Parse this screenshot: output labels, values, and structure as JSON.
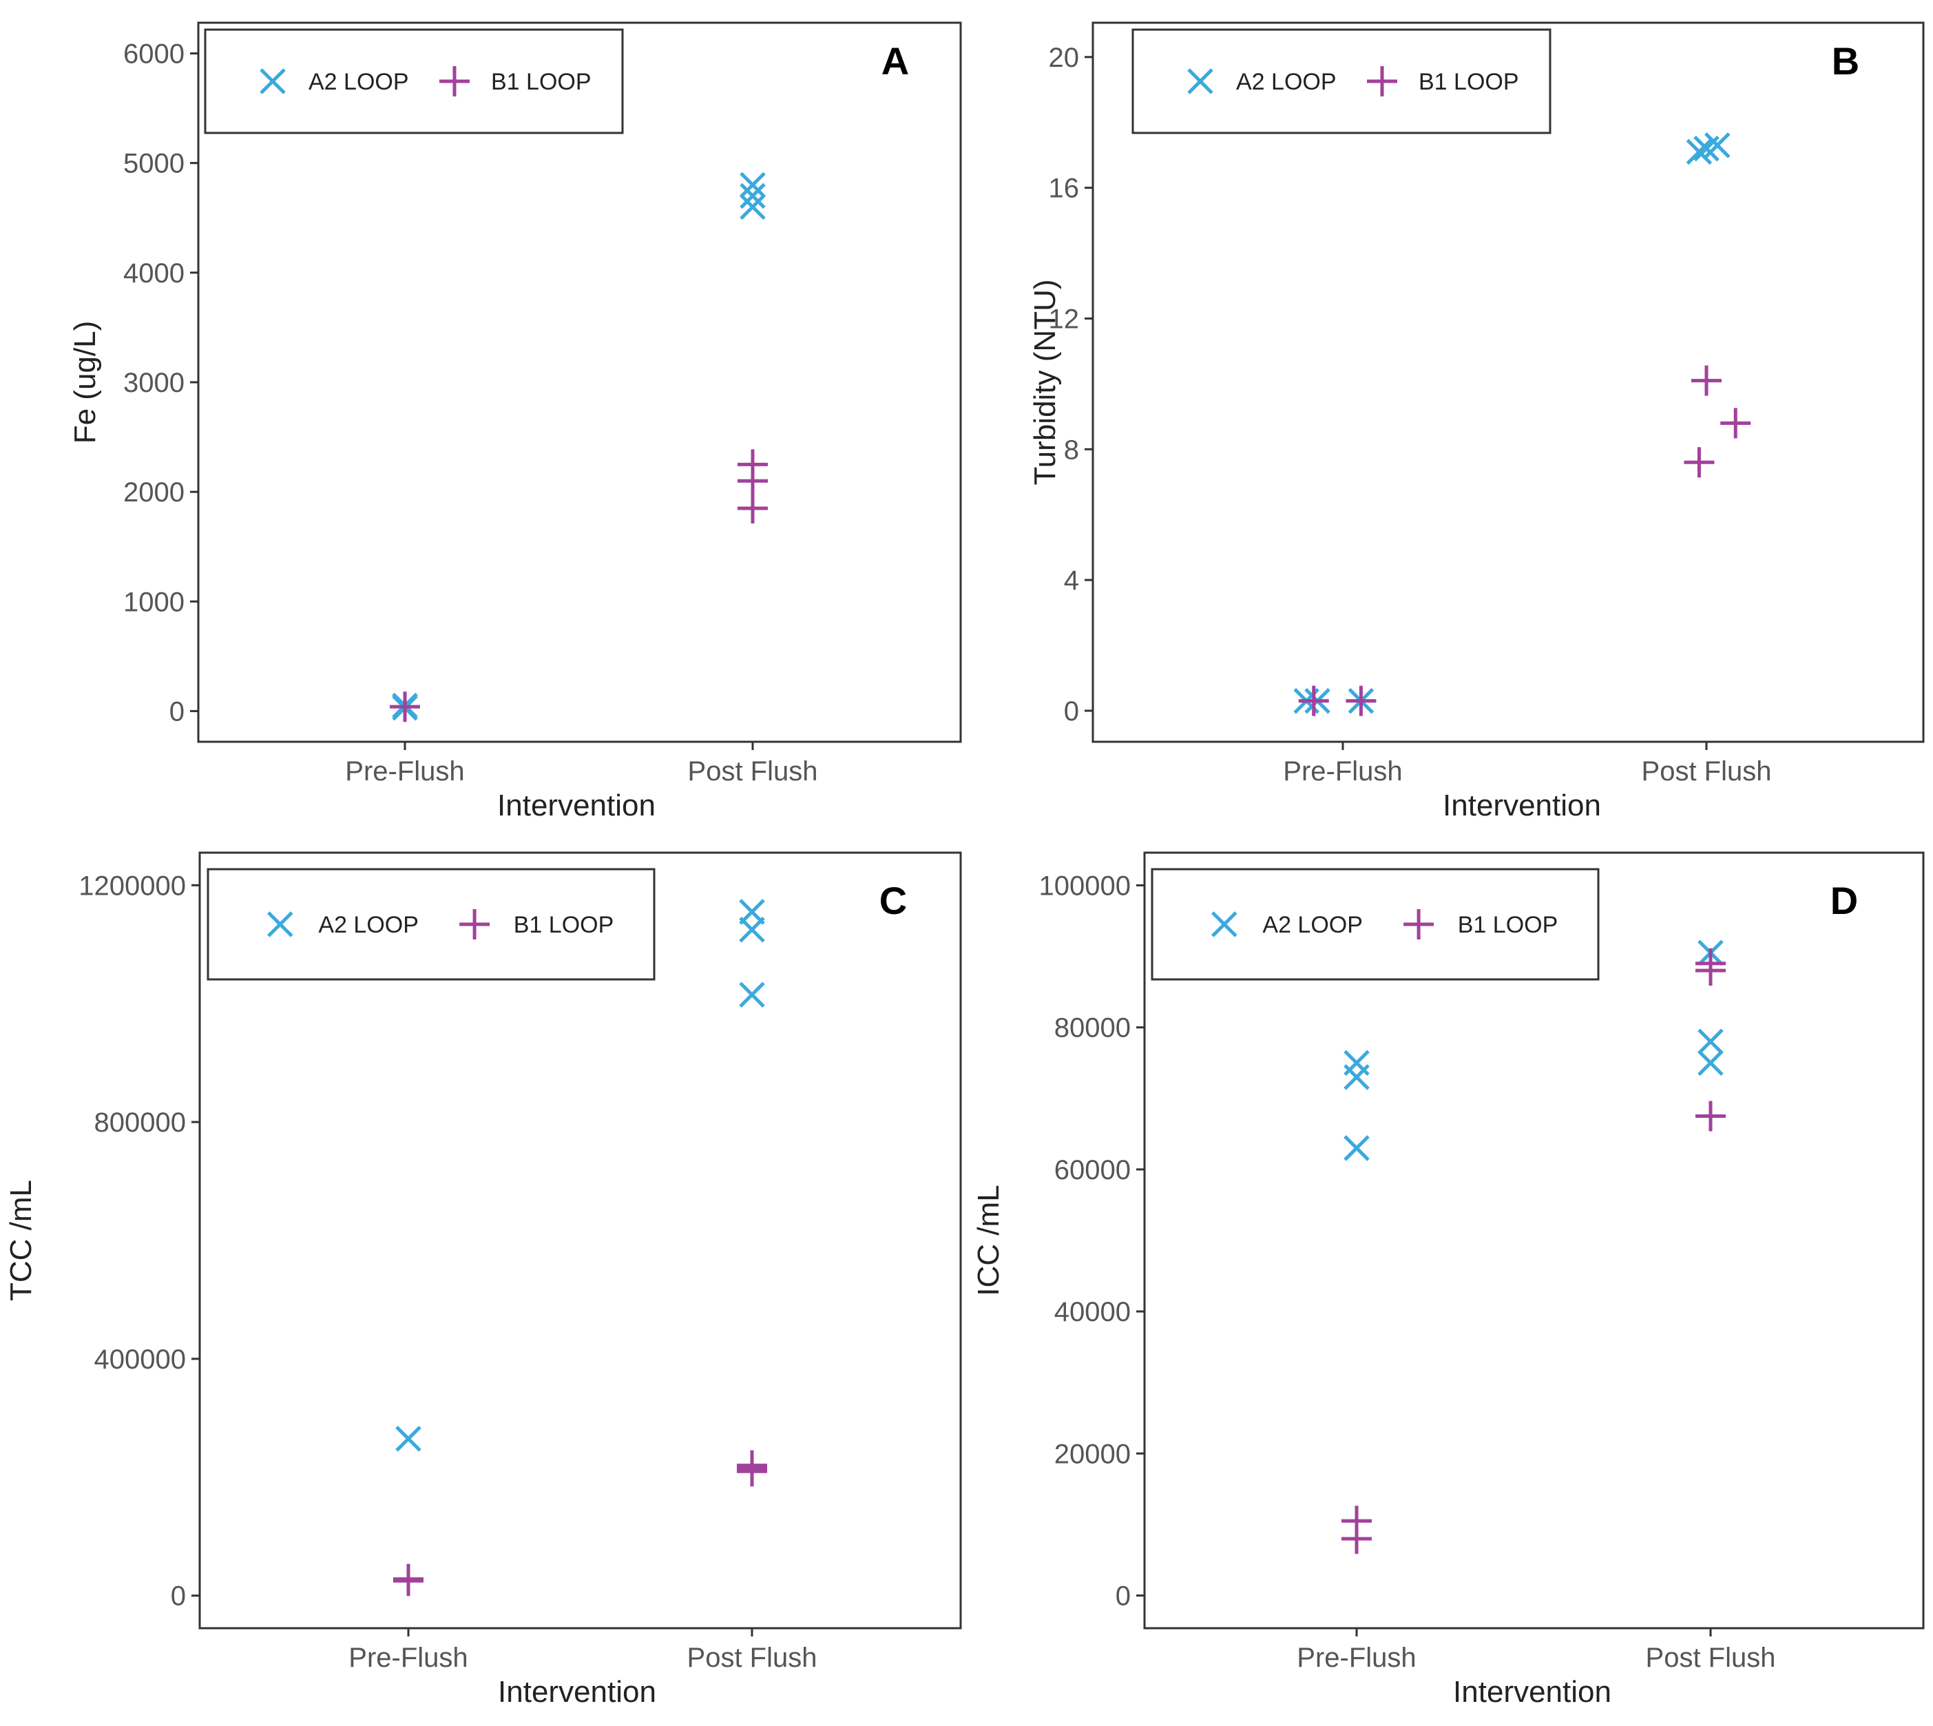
{
  "colors": {
    "a2": "#3BA9DC",
    "b1": "#A2419B",
    "axis": "#333333",
    "text": "#555555"
  },
  "legend": {
    "a2_label": "A2 LOOP",
    "b1_label": "B1 LOOP",
    "a2_icon": "cross-x-marker",
    "b1_icon": "plus-marker"
  },
  "chart_data": [
    {
      "id": "A",
      "type": "scatter",
      "letter": "A",
      "xlabel": "Intervention",
      "ylabel": "Fe (ug/L)",
      "categories": [
        "Pre-Flush",
        "Post Flush"
      ],
      "ylim": [
        -280,
        6280
      ],
      "yticks": [
        0,
        1000,
        2000,
        3000,
        4000,
        5000,
        6000
      ],
      "ytick_labels": [
        "0",
        "1000",
        "2000",
        "3000",
        "4000",
        "5000",
        "6000"
      ],
      "series": [
        {
          "name": "A2 LOOP",
          "marker": "x",
          "points": [
            [
              0,
              50
            ],
            [
              0,
              30
            ],
            [
              1,
              4800
            ],
            [
              1,
              4700
            ],
            [
              1,
              4600
            ]
          ]
        },
        {
          "name": "B1 LOOP",
          "marker": "+",
          "points": [
            [
              0,
              40
            ],
            [
              1,
              2250
            ],
            [
              1,
              2100
            ],
            [
              1,
              1850
            ]
          ]
        }
      ]
    },
    {
      "id": "B",
      "type": "scatter",
      "letter": "B",
      "xlabel": "Intervention",
      "ylabel": "Turbidity (NTU)",
      "categories": [
        "Pre-Flush",
        "Post Flush"
      ],
      "ylim": [
        -0.95,
        21.05
      ],
      "yticks": [
        0,
        4,
        8,
        12,
        16,
        20
      ],
      "ytick_labels": [
        "0",
        "4",
        "8",
        "12",
        "16",
        "20"
      ],
      "series": [
        {
          "name": "A2 LOOP",
          "marker": "x",
          "points": [
            [
              -0.07,
              0.3
            ],
            [
              -0.1,
              0.3
            ],
            [
              0.05,
              0.3
            ],
            [
              1,
              17.2
            ],
            [
              1.03,
              17.3
            ],
            [
              0.98,
              17.1
            ]
          ]
        },
        {
          "name": "B1 LOOP",
          "marker": "+",
          "points": [
            [
              -0.08,
              0.3
            ],
            [
              0.05,
              0.3
            ],
            [
              1,
              10.1
            ],
            [
              1.08,
              8.8
            ],
            [
              0.98,
              7.6
            ]
          ]
        }
      ]
    },
    {
      "id": "C",
      "type": "scatter",
      "letter": "C",
      "xlabel": "Intervention",
      "ylabel": "TCC /mL",
      "categories": [
        "Pre-Flush",
        "Post Flush"
      ],
      "ylim": [
        -55000,
        1255000
      ],
      "yticks": [
        0,
        400000,
        800000,
        1200000
      ],
      "ytick_labels": [
        "0",
        "400000",
        "800000",
        "1200000"
      ],
      "series": [
        {
          "name": "A2 LOOP",
          "marker": "x",
          "points": [
            [
              0,
              265000
            ],
            [
              1,
              1155000
            ],
            [
              1,
              1125000
            ],
            [
              1,
              1015000
            ]
          ]
        },
        {
          "name": "B1 LOOP",
          "marker": "+",
          "points": [
            [
              0,
              25000
            ],
            [
              0,
              28000
            ],
            [
              1,
              215000
            ],
            [
              1,
              220000
            ],
            [
              1,
              210000
            ]
          ]
        }
      ]
    },
    {
      "id": "D",
      "type": "scatter",
      "letter": "D",
      "xlabel": "Intervention",
      "ylabel": "ICC /mL",
      "categories": [
        "Pre-Flush",
        "Post Flush"
      ],
      "ylim": [
        -4600,
        104600
      ],
      "yticks": [
        0,
        20000,
        40000,
        60000,
        80000,
        100000
      ],
      "ytick_labels": [
        "0",
        "20000",
        "40000",
        "60000",
        "80000",
        "100000"
      ],
      "series": [
        {
          "name": "A2 LOOP",
          "marker": "x",
          "points": [
            [
              0,
              75000
            ],
            [
              0,
              73000
            ],
            [
              0,
              63000
            ],
            [
              1,
              90500
            ],
            [
              1,
              78000
            ],
            [
              1,
              75000
            ]
          ]
        },
        {
          "name": "B1 LOOP",
          "marker": "+",
          "points": [
            [
              0,
              10500
            ],
            [
              0,
              8000
            ],
            [
              1,
              89000
            ],
            [
              1,
              88000
            ],
            [
              1,
              67500
            ]
          ]
        }
      ]
    }
  ]
}
